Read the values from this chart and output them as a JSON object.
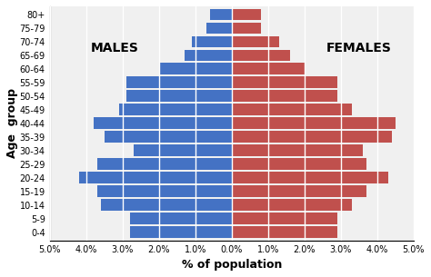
{
  "age_groups": [
    "0-4",
    "5-9",
    "10-14",
    "15-19",
    "20-24",
    "25-29",
    "30-34",
    "35-39",
    "40-44",
    "45-49",
    "50-54",
    "55-59",
    "60-64",
    "65-69",
    "70-74",
    "75-79",
    "80+"
  ],
  "males": [
    2.8,
    2.8,
    3.6,
    3.7,
    4.2,
    3.7,
    2.7,
    3.5,
    3.8,
    3.1,
    2.9,
    2.9,
    2.0,
    1.3,
    1.1,
    0.7,
    0.6
  ],
  "females": [
    2.9,
    2.9,
    3.3,
    3.7,
    4.3,
    3.7,
    3.6,
    4.4,
    4.5,
    3.3,
    2.9,
    2.9,
    2.0,
    1.6,
    1.3,
    0.8,
    0.8
  ],
  "male_color": "#4472C4",
  "female_color": "#C0504D",
  "xlabel": "% of population",
  "ylabel": "Age  group",
  "males_label": "MALES",
  "females_label": "FEMALES",
  "xlim": 5.0,
  "background_color": "#ffffff"
}
